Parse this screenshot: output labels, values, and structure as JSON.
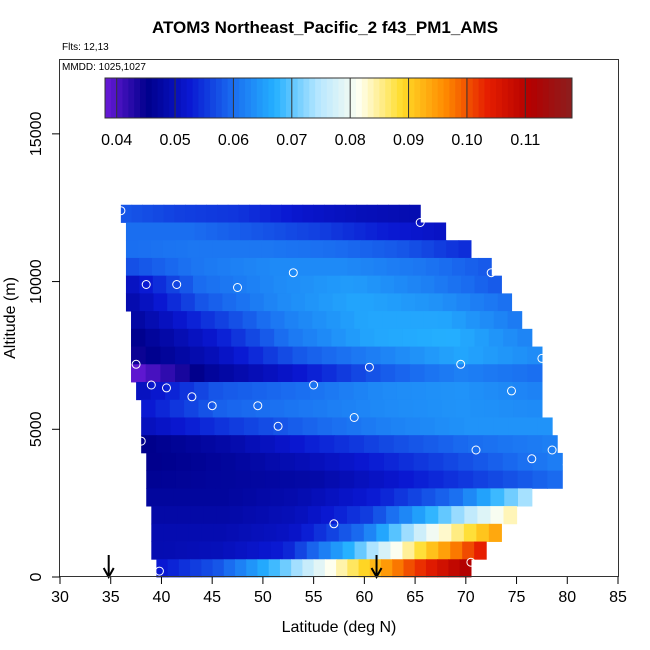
{
  "title": "ATOM3 Northeast_Pacific_2 f43_PM1_AMS",
  "flights_label": "Flts: 12,13",
  "mmdd_label": "MMDD: 1025,1027",
  "chart_data": {
    "type": "heatmap",
    "title": "ATOM3 Northeast_Pacific_2 f43_PM1_AMS",
    "xlabel": "Latitude (deg N)",
    "ylabel": "Altitude (m)",
    "xlim": [
      30,
      85
    ],
    "ylim": [
      0,
      17500
    ],
    "x_ticks": [
      30,
      35,
      40,
      45,
      50,
      55,
      60,
      65,
      70,
      75,
      80,
      85
    ],
    "y_ticks": [
      0,
      5000,
      10000,
      15000
    ],
    "colorbar": {
      "range": [
        0.038,
        0.118
      ],
      "ticks": [
        0.04,
        0.05,
        0.06,
        0.07,
        0.08,
        0.09,
        0.1,
        0.11
      ],
      "tick_labels": [
        "0.04",
        "0.05",
        "0.06",
        "0.07",
        "0.08",
        "0.09",
        "0.10",
        "0.11"
      ],
      "colors": [
        "#6a1ad8",
        "#00008c",
        "#0a18d2",
        "#1a6cf0",
        "#24b0ff",
        "#b4e6ff",
        "#fffff0",
        "#ffdc28",
        "#ff8c00",
        "#e61e00",
        "#b40000",
        "#8c1e1e"
      ]
    },
    "bands": [
      {
        "alt_bottom": 12000,
        "alt_top": 12600,
        "lat_start": 36.0,
        "lat_end": 65.5,
        "values": [
          0.058,
          0.056,
          0.055,
          0.052,
          0.05,
          0.049
        ]
      },
      {
        "alt_bottom": 11400,
        "alt_top": 12000,
        "lat_start": 36.5,
        "lat_end": 68.0,
        "values": [
          0.06,
          0.06,
          0.058,
          0.056,
          0.053,
          0.051
        ]
      },
      {
        "alt_bottom": 10800,
        "alt_top": 11400,
        "lat_start": 36.5,
        "lat_end": 70.5,
        "values": [
          0.06,
          0.061,
          0.061,
          0.06,
          0.058,
          0.054
        ]
      },
      {
        "alt_bottom": 10200,
        "alt_top": 10800,
        "lat_start": 36.5,
        "lat_end": 72.5,
        "values": [
          0.057,
          0.061,
          0.063,
          0.063,
          0.061,
          0.058
        ]
      },
      {
        "alt_bottom": 9600,
        "alt_top": 10200,
        "lat_start": 36.5,
        "lat_end": 73.5,
        "values": [
          0.05,
          0.06,
          0.063,
          0.065,
          0.062,
          0.058
        ]
      },
      {
        "alt_bottom": 9000,
        "alt_top": 9600,
        "lat_start": 36.5,
        "lat_end": 74.5,
        "values": [
          0.048,
          0.058,
          0.063,
          0.066,
          0.064,
          0.06
        ]
      },
      {
        "alt_bottom": 8400,
        "alt_top": 9000,
        "lat_start": 37.0,
        "lat_end": 75.5,
        "values": [
          0.047,
          0.055,
          0.062,
          0.066,
          0.066,
          0.061
        ]
      },
      {
        "alt_bottom": 7800,
        "alt_top": 8400,
        "lat_start": 37.0,
        "lat_end": 76.5,
        "values": [
          0.045,
          0.052,
          0.061,
          0.066,
          0.067,
          0.062
        ]
      },
      {
        "alt_bottom": 7200,
        "alt_top": 7800,
        "lat_start": 37.0,
        "lat_end": 77.5,
        "values": [
          0.044,
          0.05,
          0.058,
          0.062,
          0.066,
          0.063
        ]
      },
      {
        "alt_bottom": 6600,
        "alt_top": 7200,
        "lat_start": 37.0,
        "lat_end": 77.5,
        "values": [
          0.038,
          0.047,
          0.052,
          0.058,
          0.062,
          0.06
        ]
      },
      {
        "alt_bottom": 6000,
        "alt_top": 6600,
        "lat_start": 37.5,
        "lat_end": 77.5,
        "values": [
          0.05,
          0.058,
          0.06,
          0.063,
          0.064,
          0.062
        ]
      },
      {
        "alt_bottom": 5400,
        "alt_top": 6000,
        "lat_start": 38.0,
        "lat_end": 77.5,
        "values": [
          0.052,
          0.059,
          0.061,
          0.063,
          0.064,
          0.063
        ]
      },
      {
        "alt_bottom": 4800,
        "alt_top": 5400,
        "lat_start": 38.0,
        "lat_end": 78.5,
        "values": [
          0.05,
          0.055,
          0.059,
          0.062,
          0.064,
          0.064
        ]
      },
      {
        "alt_bottom": 4200,
        "alt_top": 4800,
        "lat_start": 38.0,
        "lat_end": 79.0,
        "values": [
          0.045,
          0.048,
          0.053,
          0.057,
          0.06,
          0.062
        ]
      },
      {
        "alt_bottom": 3600,
        "alt_top": 4200,
        "lat_start": 38.5,
        "lat_end": 79.5,
        "values": [
          0.045,
          0.047,
          0.05,
          0.054,
          0.058,
          0.062
        ]
      },
      {
        "alt_bottom": 3000,
        "alt_top": 3600,
        "lat_start": 38.5,
        "lat_end": 79.5,
        "values": [
          0.046,
          0.047,
          0.048,
          0.052,
          0.056,
          0.06
        ]
      },
      {
        "alt_bottom": 2400,
        "alt_top": 3000,
        "lat_start": 38.5,
        "lat_end": 76.5,
        "values": [
          0.047,
          0.047,
          0.049,
          0.053,
          0.06,
          0.075
        ]
      },
      {
        "alt_bottom": 1800,
        "alt_top": 2400,
        "lat_start": 39.0,
        "lat_end": 75.0,
        "values": [
          0.048,
          0.048,
          0.05,
          0.056,
          0.07,
          0.085
        ]
      },
      {
        "alt_bottom": 1200,
        "alt_top": 1800,
        "lat_start": 39.0,
        "lat_end": 73.5,
        "values": [
          0.049,
          0.049,
          0.051,
          0.06,
          0.08,
          0.095
        ]
      },
      {
        "alt_bottom": 600,
        "alt_top": 1200,
        "lat_start": 39.0,
        "lat_end": 72.0,
        "values": [
          0.049,
          0.05,
          0.053,
          0.068,
          0.088,
          0.105
        ]
      },
      {
        "alt_bottom": 0,
        "alt_top": 600,
        "lat_start": 39.5,
        "lat_end": 70.5,
        "values": [
          0.052,
          0.058,
          0.07,
          0.085,
          0.1,
          0.112
        ]
      }
    ],
    "points": [
      {
        "x": 36.0,
        "y": 12400
      },
      {
        "x": 65.5,
        "y": 12000
      },
      {
        "x": 72.5,
        "y": 10300
      },
      {
        "x": 53.0,
        "y": 10300
      },
      {
        "x": 38.5,
        "y": 9900
      },
      {
        "x": 41.5,
        "y": 9900
      },
      {
        "x": 47.5,
        "y": 9800
      },
      {
        "x": 37.5,
        "y": 7200
      },
      {
        "x": 60.5,
        "y": 7100
      },
      {
        "x": 69.5,
        "y": 7200
      },
      {
        "x": 77.5,
        "y": 7400
      },
      {
        "x": 39.0,
        "y": 6500
      },
      {
        "x": 40.5,
        "y": 6400
      },
      {
        "x": 55.0,
        "y": 6500
      },
      {
        "x": 74.5,
        "y": 6300
      },
      {
        "x": 43.0,
        "y": 6100
      },
      {
        "x": 45.0,
        "y": 5800
      },
      {
        "x": 49.5,
        "y": 5800
      },
      {
        "x": 59.0,
        "y": 5400
      },
      {
        "x": 51.5,
        "y": 5100
      },
      {
        "x": 38.0,
        "y": 4600
      },
      {
        "x": 71.0,
        "y": 4300
      },
      {
        "x": 78.5,
        "y": 4300
      },
      {
        "x": 76.5,
        "y": 4000
      },
      {
        "x": 80.0,
        "y": 3800
      },
      {
        "x": 57.0,
        "y": 1800
      },
      {
        "x": 39.8,
        "y": 200
      },
      {
        "x": 70.5,
        "y": 500
      }
    ],
    "arrows": [
      34.8,
      61.2
    ]
  }
}
